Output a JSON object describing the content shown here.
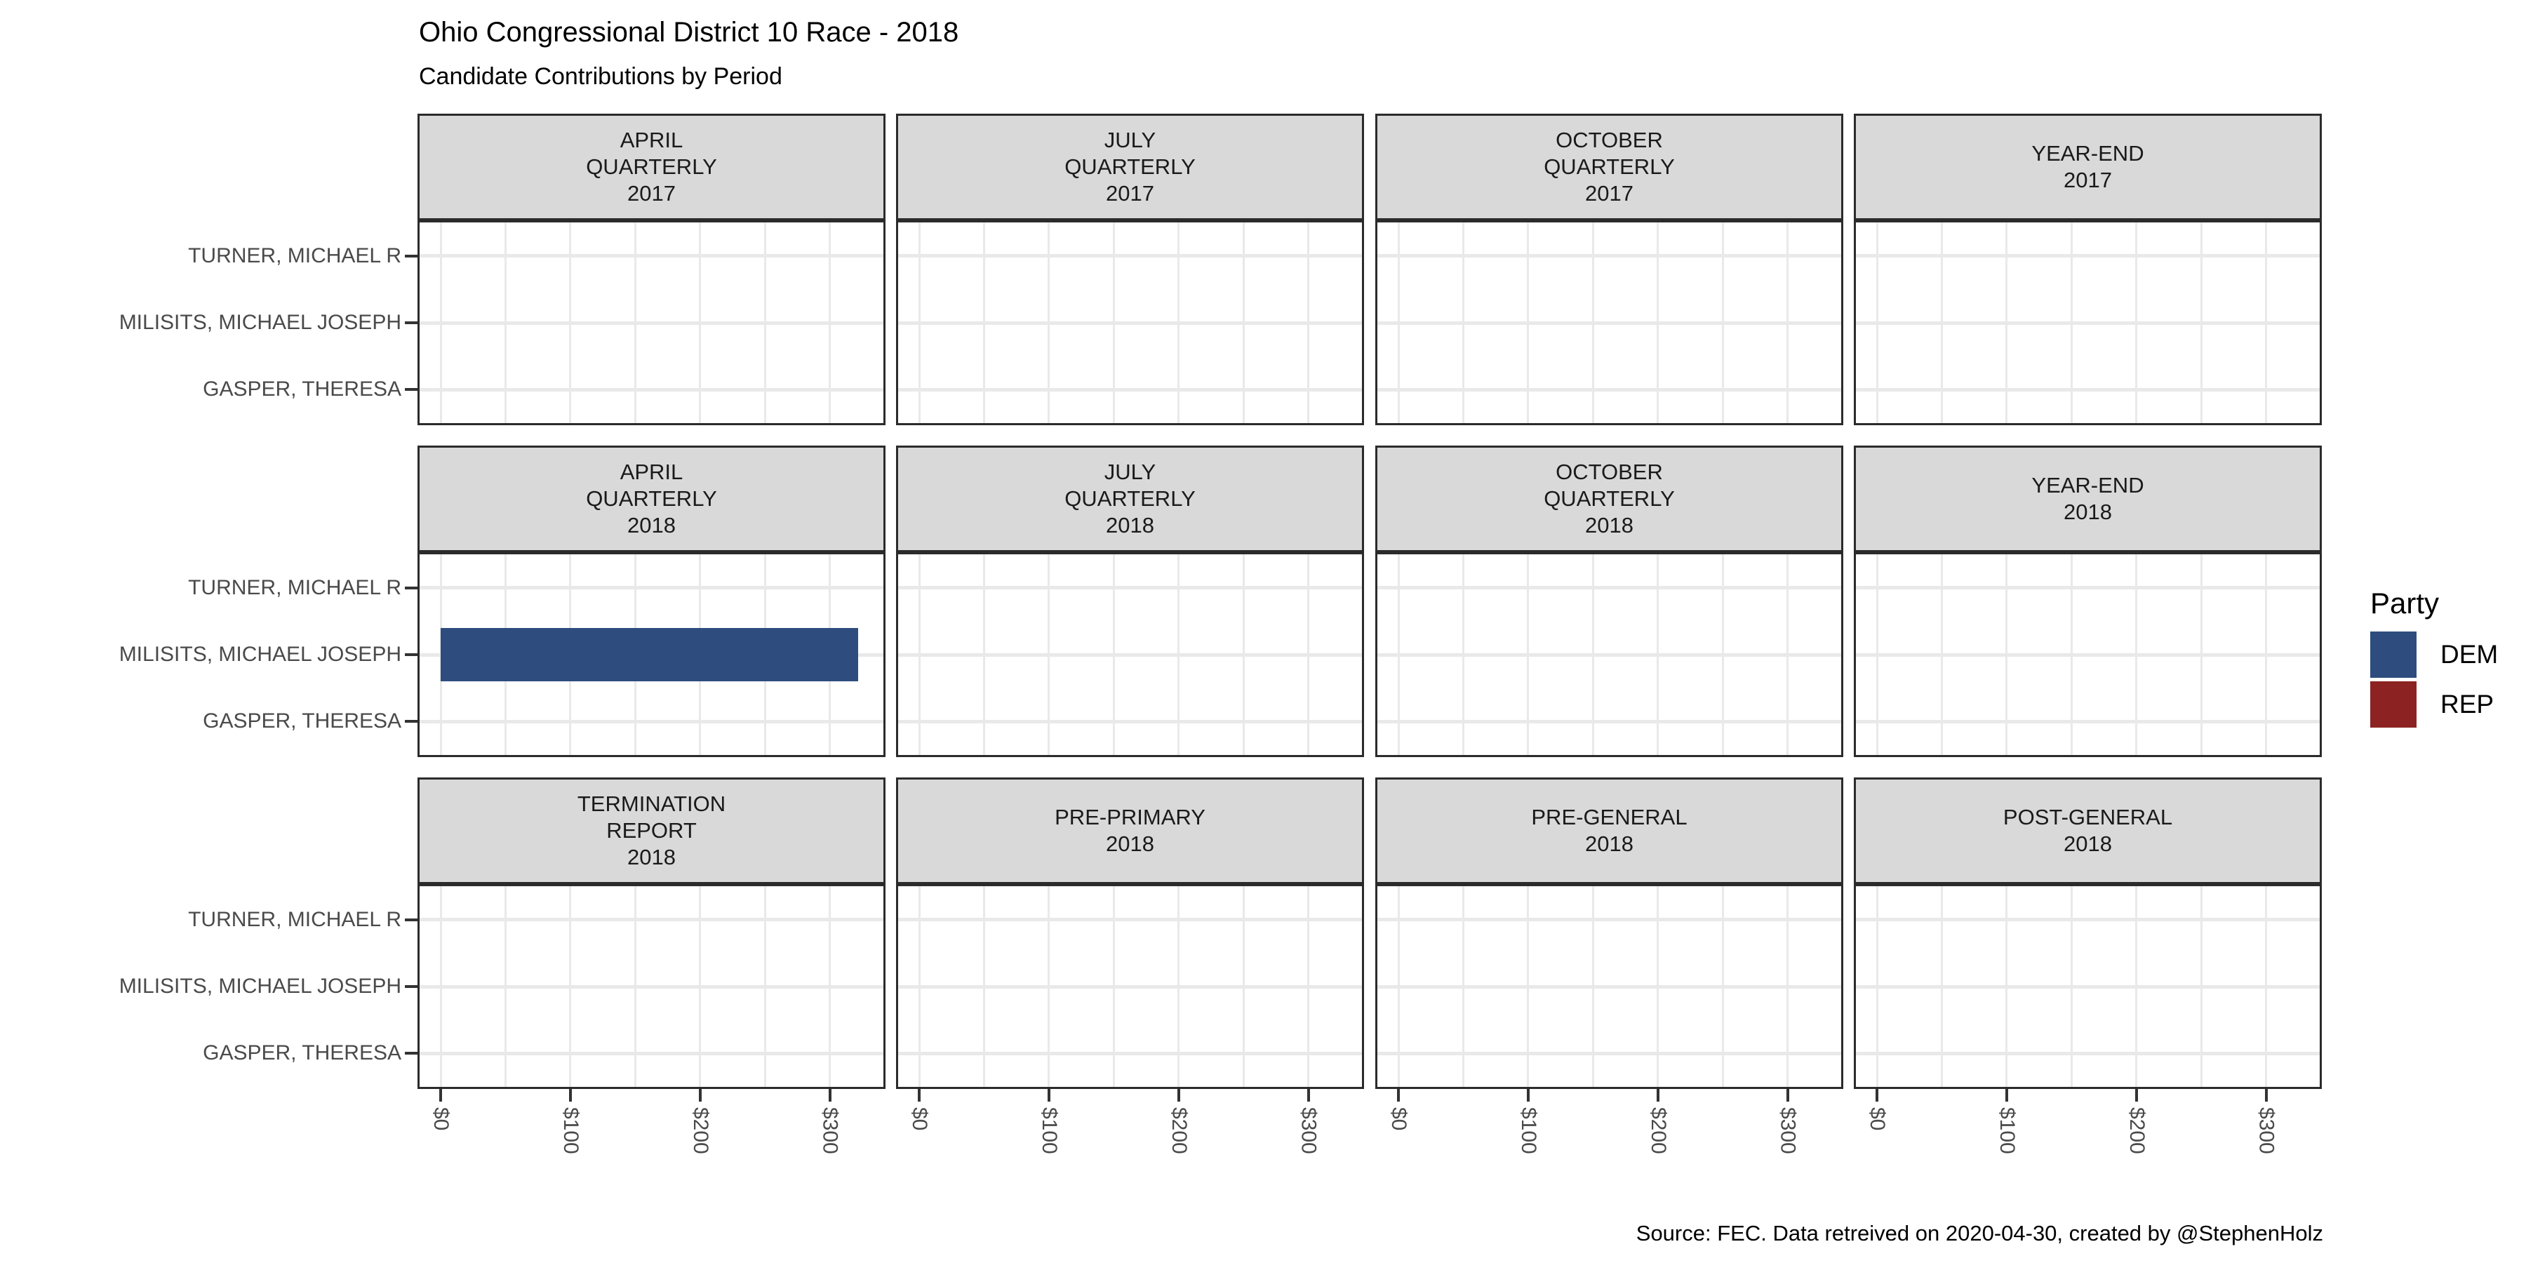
{
  "header": {
    "title": "Ohio Congressional District 10 Race - 2018",
    "subtitle": "Candidate Contributions by Period"
  },
  "caption": "Source: FEC. Data retreived on 2020-04-30, created by @StephenHolz",
  "legend": {
    "title": "Party",
    "entries": [
      {
        "label": "DEM",
        "color": "#2E4D7E"
      },
      {
        "label": "REP",
        "color": "#8C2322"
      }
    ]
  },
  "chart_data": {
    "type": "bar",
    "orientation": "horizontal",
    "title": "Ohio Congressional District 10 Race - 2018",
    "subtitle": "Candidate Contributions by Period",
    "facet_rows": [
      [
        {
          "label_lines": [
            "APRIL",
            "QUARTERLY",
            "2017"
          ]
        },
        {
          "label_lines": [
            "JULY",
            "QUARTERLY",
            "2017"
          ]
        },
        {
          "label_lines": [
            "OCTOBER",
            "QUARTERLY",
            "2017"
          ]
        },
        {
          "label_lines": [
            "YEAR-END",
            "2017"
          ]
        }
      ],
      [
        {
          "label_lines": [
            "APRIL",
            "QUARTERLY",
            "2018"
          ]
        },
        {
          "label_lines": [
            "JULY",
            "QUARTERLY",
            "2018"
          ]
        },
        {
          "label_lines": [
            "OCTOBER",
            "QUARTERLY",
            "2018"
          ]
        },
        {
          "label_lines": [
            "YEAR-END",
            "2018"
          ]
        }
      ],
      [
        {
          "label_lines": [
            "TERMINATION",
            "REPORT",
            "2018"
          ]
        },
        {
          "label_lines": [
            "PRE-PRIMARY",
            "2018"
          ]
        },
        {
          "label_lines": [
            "PRE-GENERAL",
            "2018"
          ]
        },
        {
          "label_lines": [
            "POST-GENERAL",
            "2018"
          ]
        }
      ]
    ],
    "y_categories": [
      "TURNER, MICHAEL R",
      "MILISITS, MICHAEL JOSEPH",
      "GASPER, THERESA"
    ],
    "x_axis": {
      "tick_labels": [
        "$0",
        "$100",
        "$200",
        "$300"
      ],
      "tick_values": [
        0,
        100,
        200,
        300
      ],
      "minor_step": 50,
      "domain": [
        -16.25,
        341.25
      ]
    },
    "grid": true,
    "legend_position": "right",
    "series_color_map": {
      "DEM": "#2E4D7E",
      "REP": "#8C2322"
    },
    "bars": [
      {
        "facet": "APRIL QUARTERLY 2018",
        "facet_row": 1,
        "facet_col": 0,
        "candidate": "MILISITS, MICHAEL JOSEPH",
        "candidate_index": 1,
        "party": "DEM",
        "value": 322
      }
    ]
  }
}
